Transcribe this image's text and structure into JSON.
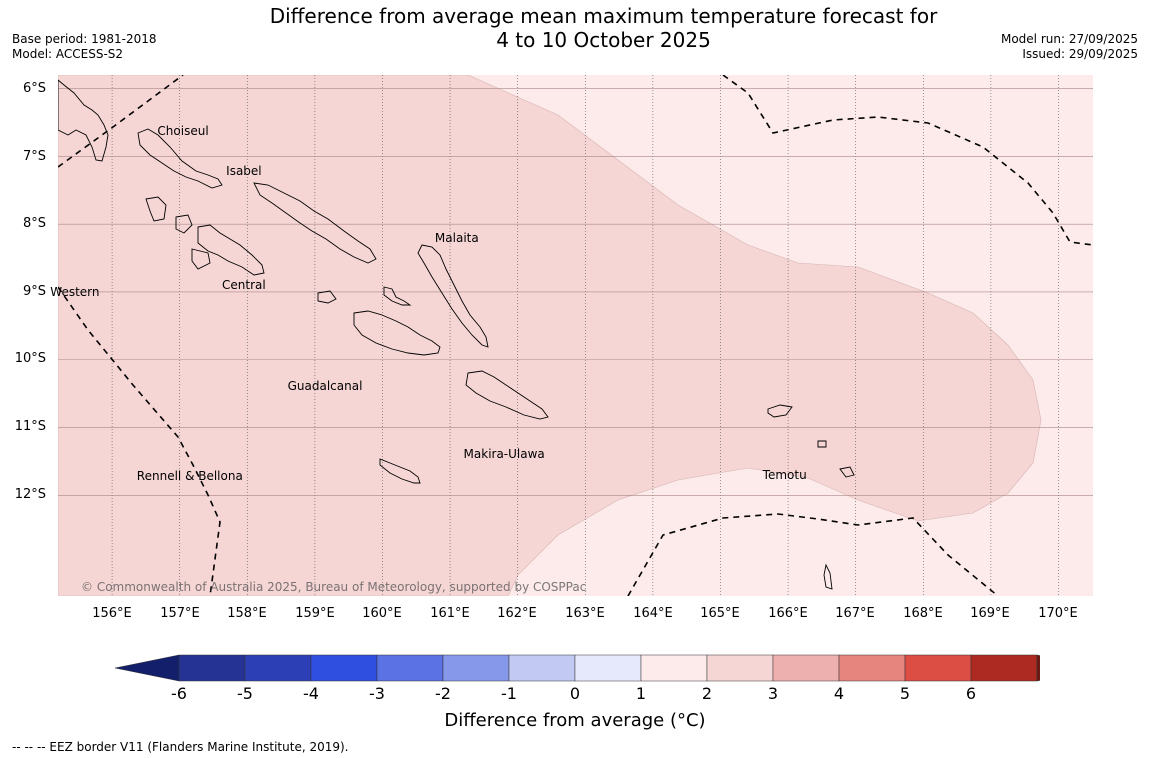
{
  "header": {
    "title_line1": "Difference from average mean maximum temperature forecast for",
    "title_line2": "4 to 10 October 2025",
    "base_period": "Base period: 1981-2018",
    "model": "Model: ACCESS-S2",
    "model_run": "Model run: 27/09/2025",
    "issued": "Issued: 29/09/2025"
  },
  "map": {
    "lat_labels": [
      "6°S",
      "7°S",
      "8°S",
      "9°S",
      "10°S",
      "11°S",
      "12°S"
    ],
    "lon_labels": [
      "156°E",
      "157°E",
      "158°E",
      "159°E",
      "160°E",
      "161°E",
      "162°E",
      "163°E",
      "164°E",
      "165°E",
      "166°E",
      "167°E",
      "168°E",
      "169°E",
      "170°E"
    ],
    "regions": [
      {
        "name": "Choiseul",
        "lon": 157.05,
        "lat": -6.62
      },
      {
        "name": "Isabel",
        "lon": 157.95,
        "lat": -7.21
      },
      {
        "name": "Malaita",
        "lon": 161.1,
        "lat": -8.21
      },
      {
        "name": "Western",
        "lon": 155.45,
        "lat": -9.0
      },
      {
        "name": "Central",
        "lon": 157.95,
        "lat": -8.9
      },
      {
        "name": "Guadalcanal",
        "lon": 159.15,
        "lat": -10.38
      },
      {
        "name": "Makira-Ulawa",
        "lon": 161.8,
        "lat": -11.39
      },
      {
        "name": "Rennell & Bellona",
        "lon": 157.15,
        "lat": -11.71
      },
      {
        "name": "Temotu",
        "lon": 165.95,
        "lat": -11.7
      }
    ],
    "copyright": "© Commonwealth of Australia 2025, Bureau of Meteorology, supported by COSPPac",
    "anomaly_fill_colors": {
      "class_0_1": "#fcebea",
      "class_1_2": "#f5d6d5"
    }
  },
  "colorbar": {
    "ticks": [
      "-6",
      "-5",
      "-4",
      "-3",
      "-2",
      "-1",
      "0",
      "1",
      "2",
      "3",
      "4",
      "5",
      "6"
    ],
    "colors": [
      "#253494",
      "#2c3fb5",
      "#2f4fe0",
      "#5a72e3",
      "#8598ea",
      "#c2caf4",
      "#e6e9fb",
      "#fcebea",
      "#f5d6d5",
      "#eeafaf",
      "#e6847e",
      "#dc4d43",
      "#ad2a23"
    ],
    "under_color": "#131f6b",
    "over_color": "#6b1a15",
    "label": "Difference from average (°C)"
  },
  "footnote": "--  --  -- EEZ border V11 (Flanders Marine Institute, 2019)."
}
